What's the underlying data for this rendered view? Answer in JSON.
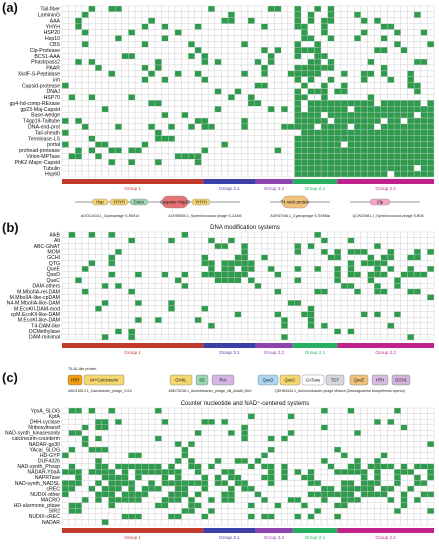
{
  "panels": [
    {
      "letter": "(a)",
      "title": "",
      "rows": [
        "Tail-fiber",
        "LamininG",
        "AAA",
        "YHYH",
        "HSP20",
        "Hsp10",
        "CBS",
        "Clp-Protease",
        "BCS1-AAA",
        "Phastrpass2",
        "PAAR",
        "XkdF-S-Peptidase",
        "inh",
        "Capsid-protease",
        "DNAJ",
        "HSP70",
        "gp4-hd-comp-RExase",
        "gp23-Maj-Capsid",
        "Base-wedge",
        "T4gp19-Tailtube",
        "DNA-end-prot",
        "Tail-sheath",
        "Terminase-LS",
        "portal",
        "prohead-protease",
        "Virion-MPTase",
        "PhKZ-Major-Capsid",
        "Tubulin",
        "Hsp60"
      ],
      "domain_strip": {
        "domains": [
          "Hsp",
          "YHYH",
          "ConA",
          "Caspase-Hsp20",
          "YHYH",
          "T4 neck protein",
          "Clp"
        ],
        "captions": [
          "AOO14434.1_Cyanophage S-RIM14",
          "AOV59550.1_Synechococcus phage S-CAM4",
          "AGH37446.1_Cyanophage S-SSM6a",
          "QCW22981.1_Synechococcus phage S-B05"
        ]
      }
    },
    {
      "letter": "(b)",
      "title": "DNA modification systems",
      "rows": [
        "AlkB",
        "Alt",
        "ABC-GNAT",
        "MOM",
        "GCHI",
        "QTG",
        "QueE",
        "QueD",
        "QueC",
        "DAM-others",
        "M.MboIIA-rel-DAM",
        "M.MboIIA-like-cpDAM",
        "N4-M.MboIIA-like-DAM",
        "M.EcoKII-DAM-mod",
        "cpM.EcoKII-like-DAM",
        "M.EcoKI-like-DAM",
        "T4-DAM-like",
        "DCMethylase",
        "DAM-minimal"
      ],
      "domain_strip": null
    },
    {
      "letter": "(c)",
      "title": "Counter nucleotide and NAD⁺-centered systems",
      "rows": [
        "YpsA_SLOG",
        "KptA",
        "DHH-cyclase",
        "Nribosyltransf",
        "NAD-synth_kinasesonly",
        "calcineurin-counterm",
        "NADAR-gp30",
        "YAcai_SLOG",
        "HD-GYP",
        "DUF4326",
        "NAD-synth_Phosp",
        "NADAR-YbaA",
        "NAPRTase",
        "NAD-synth_NADSL",
        "cREC",
        "NUDIX-other",
        "MACRO",
        "HD-alarmone_ptase",
        "SIR2",
        "NUDIX-cREC",
        "NADAR"
      ],
      "domain_strip": {
        "header": "T5-A1-like protein",
        "domains": [
          "HTH",
          "xX+Calcineurin",
          "GHKL",
          "SS",
          "RIA",
          "QueD",
          "QueC",
          "GATase",
          "TGT",
          "QueE",
          "HTH",
          "GCH1"
        ],
        "captions": [
          "ABO16513.1_Caulobacter_phage_Cr10",
          "AND75238.1_Acinetobacter_phage_vB_AbaM_Me3",
          "QDH83434.1_Achromobacter phage Motura (Deazaguanine biosynthesis operon)"
        ]
      }
    }
  ],
  "groups": [
    "Group 1",
    "Group 3.1",
    "Group 3.2",
    "Group 2.1",
    "Group 2.2"
  ],
  "group_widths": [
    0.38,
    0.14,
    0.1,
    0.12,
    0.26
  ],
  "colors": {
    "cell_on": "#2e9c4c",
    "cell_off": "#ffffff",
    "grid": "#c9c9c9",
    "group_1": "#c0392b",
    "group_3_1": "#3b3fa8",
    "group_3_2": "#8e44ad",
    "group_2_1": "#27ae60",
    "group_2_2": "#c0228c"
  }
}
